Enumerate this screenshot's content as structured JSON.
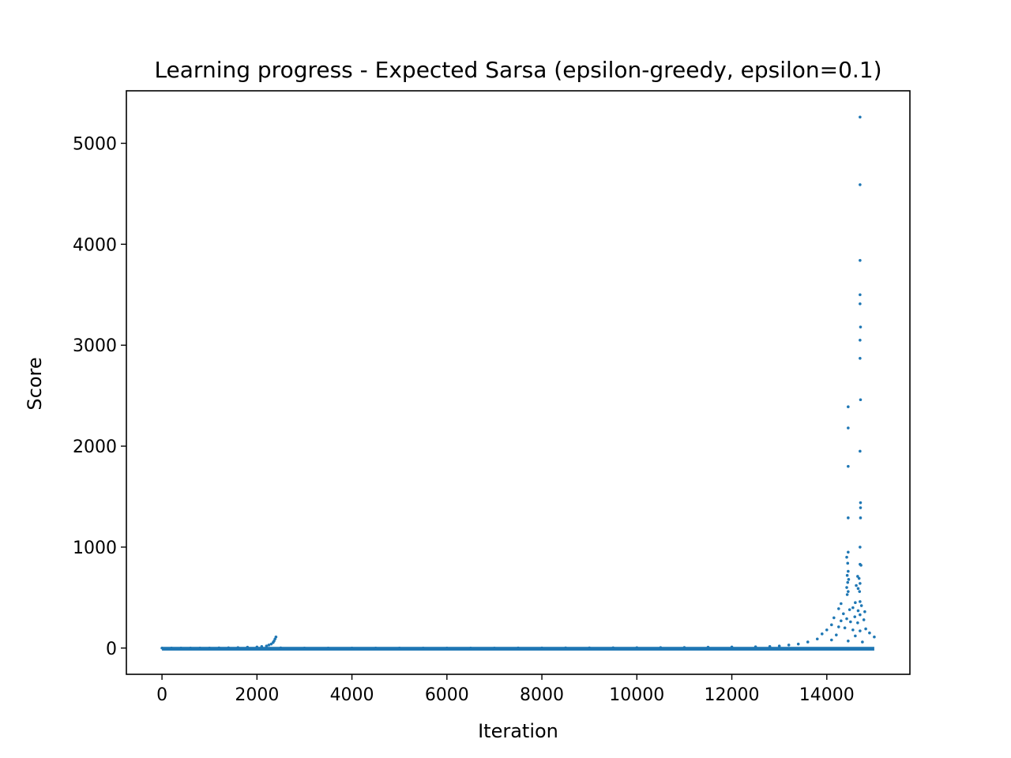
{
  "chart_data": {
    "type": "scatter",
    "title": "Learning progress - Expected Sarsa (epsilon-greedy, epsilon=0.1)",
    "xlabel": "Iteration",
    "ylabel": "Score",
    "xlim": [
      -750,
      15750
    ],
    "ylim": [
      -260,
      5520
    ],
    "xticks": [
      0,
      2000,
      4000,
      6000,
      8000,
      10000,
      12000,
      14000
    ],
    "yticks": [
      0,
      1000,
      2000,
      3000,
      4000,
      5000
    ],
    "grid": false,
    "legend": "none",
    "marker_color": "#1f77b4",
    "series": [
      {
        "points": [
          [
            14700,
            5260
          ],
          [
            14700,
            4590
          ],
          [
            14700,
            3840
          ],
          [
            14700,
            3500
          ],
          [
            14700,
            3410
          ],
          [
            14710,
            3180
          ],
          [
            14700,
            3050
          ],
          [
            14700,
            2870
          ],
          [
            14710,
            2460
          ],
          [
            14450,
            2390
          ],
          [
            14450,
            2180
          ],
          [
            14700,
            1950
          ],
          [
            14450,
            1800
          ],
          [
            14710,
            1440
          ],
          [
            14710,
            1390
          ],
          [
            14450,
            1290
          ],
          [
            14710,
            1290
          ],
          [
            14700,
            1000
          ],
          [
            14450,
            950
          ],
          [
            14420,
            900
          ],
          [
            14440,
            840
          ],
          [
            14700,
            830
          ],
          [
            14720,
            820
          ],
          [
            14450,
            760
          ],
          [
            14430,
            720
          ],
          [
            14650,
            710
          ],
          [
            14680,
            690
          ],
          [
            14460,
            680
          ],
          [
            14440,
            650
          ],
          [
            14700,
            640
          ],
          [
            14620,
            620
          ],
          [
            14420,
            600
          ],
          [
            14660,
            590
          ],
          [
            14450,
            560
          ],
          [
            14690,
            560
          ],
          [
            14430,
            530
          ],
          [
            14300,
            440
          ],
          [
            14700,
            460
          ],
          [
            14600,
            450
          ],
          [
            14730,
            420
          ],
          [
            14550,
            400
          ],
          [
            14250,
            390
          ],
          [
            14480,
            380
          ],
          [
            14660,
            370
          ],
          [
            14800,
            360
          ],
          [
            14350,
            340
          ],
          [
            14700,
            330
          ],
          [
            14590,
            310
          ],
          [
            14150,
            300
          ],
          [
            14420,
            290
          ],
          [
            14780,
            280
          ],
          [
            14300,
            270
          ],
          [
            14500,
            260
          ],
          [
            14650,
            250
          ],
          [
            14100,
            230
          ],
          [
            14250,
            210
          ],
          [
            14380,
            200
          ],
          [
            14820,
            190
          ],
          [
            14000,
            180
          ],
          [
            14550,
            180
          ],
          [
            14700,
            170
          ],
          [
            14900,
            150
          ],
          [
            13900,
            140
          ],
          [
            14200,
            130
          ],
          [
            14600,
            120
          ],
          [
            15000,
            110
          ],
          [
            13800,
            90
          ],
          [
            14100,
            80
          ],
          [
            14450,
            70
          ],
          [
            14750,
            60
          ],
          [
            13600,
            60
          ],
          [
            13400,
            40
          ],
          [
            13200,
            30
          ],
          [
            13000,
            20
          ],
          [
            12800,
            15
          ],
          [
            12500,
            12
          ],
          [
            12000,
            10
          ],
          [
            11500,
            8
          ],
          [
            11000,
            6
          ],
          [
            10500,
            5
          ],
          [
            10000,
            4
          ],
          [
            9500,
            3
          ],
          [
            9000,
            2
          ],
          [
            8500,
            2
          ],
          [
            8000,
            1
          ],
          [
            7500,
            1
          ],
          [
            7000,
            0
          ],
          [
            6500,
            0
          ],
          [
            6000,
            0
          ],
          [
            5500,
            0
          ],
          [
            5000,
            0
          ],
          [
            4500,
            0
          ],
          [
            4000,
            0
          ],
          [
            3500,
            0
          ],
          [
            3000,
            0
          ],
          [
            2500,
            2
          ],
          [
            2400,
            110
          ],
          [
            2380,
            90
          ],
          [
            2360,
            70
          ],
          [
            2340,
            55
          ],
          [
            2300,
            40
          ],
          [
            2250,
            30
          ],
          [
            2200,
            20
          ],
          [
            2100,
            15
          ],
          [
            2000,
            10
          ],
          [
            1800,
            8
          ],
          [
            1600,
            5
          ],
          [
            1400,
            3
          ],
          [
            1200,
            2
          ],
          [
            1000,
            0
          ],
          [
            800,
            0
          ],
          [
            600,
            0
          ],
          [
            400,
            0
          ],
          [
            200,
            0
          ],
          [
            0,
            0
          ]
        ]
      }
    ]
  }
}
